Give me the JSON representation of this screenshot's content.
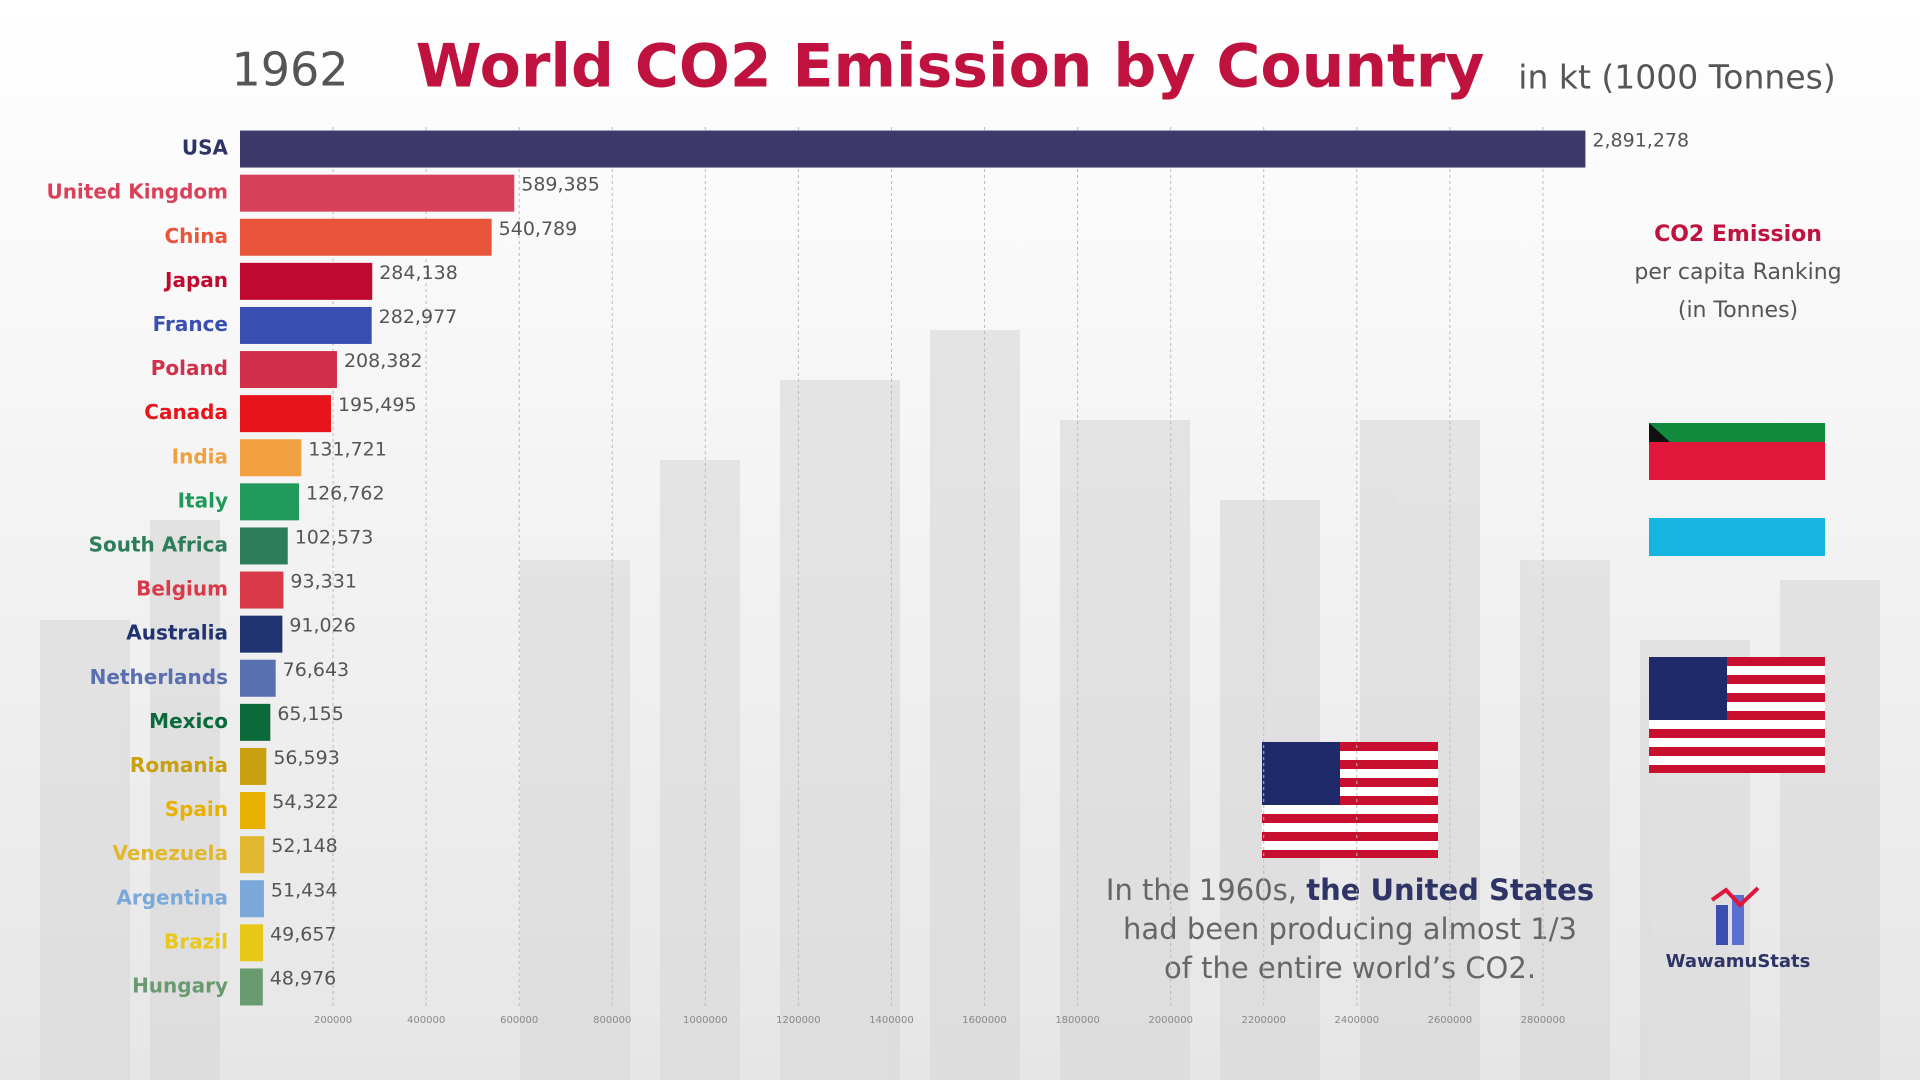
{
  "chart_data": {
    "type": "bar",
    "orientation": "horizontal",
    "year": "1962",
    "title": "World CO2 Emission by Country",
    "unit_note": "in kt (1000 Tonnes)",
    "categories": [
      "USA",
      "United Kingdom",
      "China",
      "Japan",
      "France",
      "Poland",
      "Canada",
      "India",
      "Italy",
      "South Africa",
      "Belgium",
      "Australia",
      "Netherlands",
      "Mexico",
      "Romania",
      "Spain",
      "Venezuela",
      "Argentina",
      "Brazil",
      "Hungary"
    ],
    "values": [
      2891278,
      589385,
      540789,
      284138,
      282977,
      208382,
      195495,
      131721,
      126762,
      102573,
      93331,
      91026,
      76643,
      65155,
      56593,
      54322,
      52148,
      51434,
      49657,
      48976
    ],
    "value_labels": [
      "2,891,278",
      "589,385",
      "540,789",
      "284,138",
      "282,977",
      "208,382",
      "195,495",
      "131,721",
      "126,762",
      "102,573",
      "93,331",
      "91,026",
      "76,643",
      "65,155",
      "56,593",
      "54,322",
      "52,148",
      "51,434",
      "49,657",
      "48,976"
    ],
    "colors": [
      "#3d3a6b",
      "#d9415a",
      "#e8553a",
      "#c0092e",
      "#3a4fb0",
      "#d0304a",
      "#e8141c",
      "#f0a040",
      "#1f9a5a",
      "#2e7d5a",
      "#d93a4a",
      "#1f3370",
      "#5a6fb0",
      "#0a6a3a",
      "#c9a010",
      "#e8b000",
      "#e0b830",
      "#7aa8d8",
      "#e8c818",
      "#6a9a70"
    ],
    "xlim": [
      0,
      3000000
    ],
    "xticks": [
      200000,
      400000,
      600000,
      800000,
      1000000,
      1200000,
      1400000,
      1600000,
      1800000,
      2000000,
      2200000,
      2400000,
      2600000,
      2800000
    ],
    "grid": true,
    "side_panel": [
      "CO2 Emission",
      "per capita Ranking",
      "(in Tonnes)"
    ],
    "annotation": [
      "In the 1960s, ",
      "the United States",
      "had been producing almost 1/3",
      "of the entire world’s CO2."
    ],
    "brand": "WawamuStats"
  }
}
